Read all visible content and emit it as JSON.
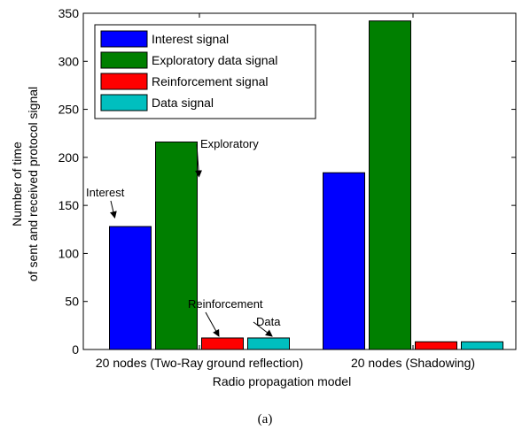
{
  "chart_data": {
    "type": "bar",
    "categories": [
      "20 nodes (Two-Ray ground reflection)",
      "20 nodes (Shadowing)"
    ],
    "series": [
      {
        "name": "Interest signal",
        "values": [
          128,
          184
        ],
        "color": "#0000ff"
      },
      {
        "name": "Exploratory data signal",
        "values": [
          216,
          342
        ],
        "color": "#007f00"
      },
      {
        "name": "Reinforcement signal",
        "values": [
          12,
          8
        ],
        "color": "#ff0000"
      },
      {
        "name": "Data signal",
        "values": [
          12,
          8
        ],
        "color": "#00bfbf"
      }
    ],
    "xlabel": "Radio propagation model",
    "ylabel": [
      "Number of time",
      "of sent and received protocol signal"
    ],
    "ylim": [
      0,
      350
    ],
    "yticks": [
      0,
      50,
      100,
      150,
      200,
      250,
      300,
      350
    ],
    "legend_position": "top-left",
    "grid": false,
    "annotations": [
      {
        "text": "Interest",
        "series": 0,
        "category": 0
      },
      {
        "text": "Exploratory",
        "series": 1,
        "category": 0
      },
      {
        "text": "Reinforcement",
        "series": 2,
        "category": 0
      },
      {
        "text": "Data",
        "series": 3,
        "category": 0
      }
    ]
  },
  "caption": "(a)"
}
